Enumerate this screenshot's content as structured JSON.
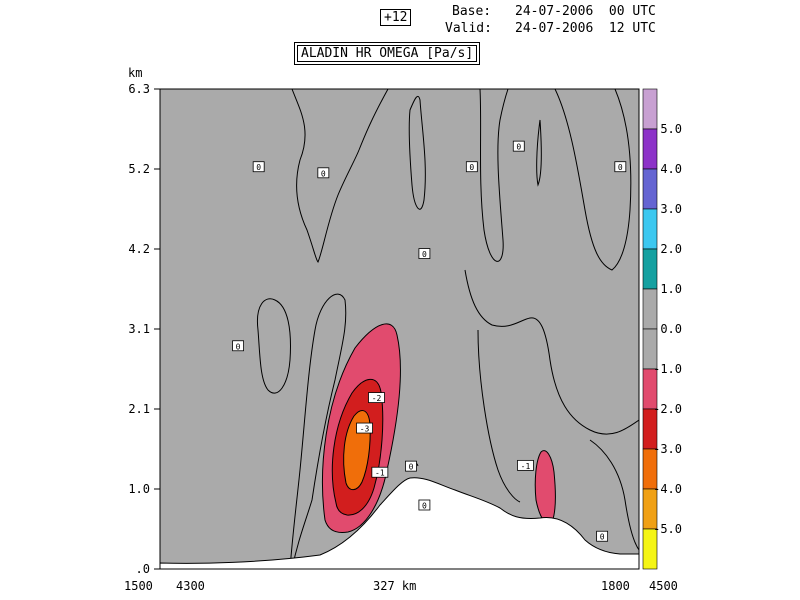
{
  "header": {
    "forecast_step": "+12",
    "base_label": "Base:",
    "base_value": "24-07-2006  00 UTC",
    "valid_label": "Valid:",
    "valid_value": "24-07-2006  12 UTC",
    "field_title": "ALADIN HR OMEGA [Pa/s]"
  },
  "chart_data": {
    "type": "heatmap",
    "title": "ALADIN HR OMEGA [Pa/s]",
    "y_unit": "km",
    "y_ticks": [
      ".0",
      "1.0",
      "2.1",
      "3.1",
      "4.2",
      "5.2",
      "6.3"
    ],
    "y_range": [
      0,
      6.3
    ],
    "x_labels": {
      "left_a": "1500",
      "left_b": "4300",
      "center": "327 km",
      "right_a": "1800",
      "right_b": "4500"
    },
    "colorbar": {
      "labels": [
        "5.0",
        "4.0",
        "3.0",
        "2.0",
        "1.0",
        "0.0",
        "-1.0",
        "-2.0",
        "-3.0",
        "-4.0",
        "-5.0"
      ],
      "colors": [
        "#c8a0d2",
        "#8c32c8",
        "#6464d2",
        "#3cc8f0",
        "#14a0a0",
        "#aaaaaa",
        "#aaaaaa",
        "#e14b6e",
        "#d21e1e",
        "#f06e0a",
        "#f0a014",
        "#f5f514"
      ]
    },
    "background_color": "#aaaaaa",
    "terrain_color": "#ffffff",
    "contour_labels": [
      {
        "x_frac": 0.206,
        "y_km": 5.28,
        "text": "0"
      },
      {
        "x_frac": 0.341,
        "y_km": 5.2,
        "text": "0"
      },
      {
        "x_frac": 0.651,
        "y_km": 5.28,
        "text": "0"
      },
      {
        "x_frac": 0.552,
        "y_km": 4.14,
        "text": "0"
      },
      {
        "x_frac": 0.749,
        "y_km": 5.55,
        "text": "0"
      },
      {
        "x_frac": 0.961,
        "y_km": 5.28,
        "text": "0"
      },
      {
        "x_frac": 0.163,
        "y_km": 2.93,
        "text": "0"
      },
      {
        "x_frac": 0.452,
        "y_km": 2.25,
        "text": "-2"
      },
      {
        "x_frac": 0.427,
        "y_km": 1.85,
        "text": "-3"
      },
      {
        "x_frac": 0.459,
        "y_km": 1.27,
        "text": "-1"
      },
      {
        "x_frac": 0.524,
        "y_km": 1.35,
        "text": "0"
      },
      {
        "x_frac": 0.552,
        "y_km": 0.84,
        "text": "0"
      },
      {
        "x_frac": 0.763,
        "y_km": 1.36,
        "text": "-1"
      },
      {
        "x_frac": 0.923,
        "y_km": 0.43,
        "text": "0"
      }
    ]
  }
}
